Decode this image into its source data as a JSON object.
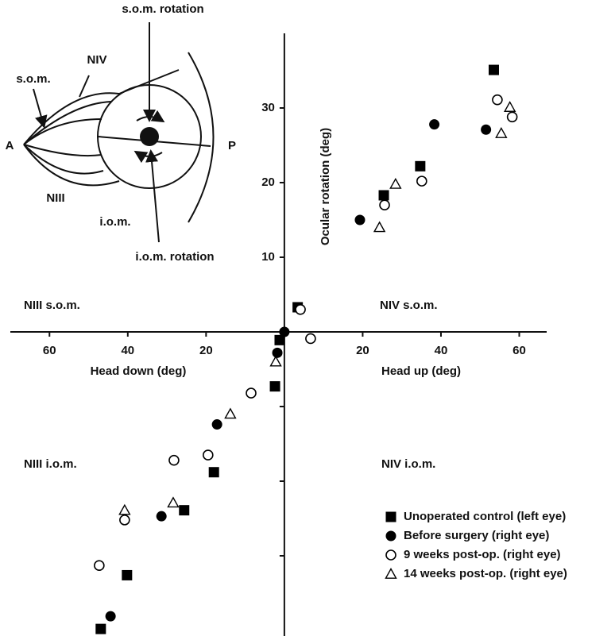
{
  "chart_data": {
    "type": "scatter",
    "xlabel_left": "Head down (deg)",
    "xlabel_right": "Head up (deg)",
    "ylabel": "Ocular rotation (deg)",
    "annotations": [
      "NIII s.o.m.",
      "NIV s.o.m.",
      "NIII i.o.m.",
      "NIV i.o.m."
    ],
    "xlim": [
      -70,
      67
    ],
    "ylim": [
      -40,
      40
    ],
    "xticks": [
      {
        "value": -60,
        "label": "60"
      },
      {
        "value": -40,
        "label": "40"
      },
      {
        "value": -20,
        "label": "20"
      },
      20,
      40,
      60
    ],
    "yticks": [
      {
        "value": -30,
        "label": null
      },
      {
        "value": -20,
        "label": null
      },
      {
        "value": -10,
        "label": null
      },
      10,
      20,
      30
    ],
    "legend": "lower right",
    "series": [
      {
        "name": "Unoperated control (left eye)",
        "color": "#000000",
        "marker": "square",
        "x": [
          53.5,
          34.7,
          25.4,
          3.4,
          -1.2,
          -2.4,
          -18,
          -25.6,
          -40.2,
          -46.9
        ],
        "values": [
          35.1,
          22.2,
          18.3,
          3.3,
          -1.1,
          -7.3,
          -18.8,
          -23.9,
          -32.6,
          -39.8
        ]
      },
      {
        "name": "Before surgery (right eye)",
        "color": "#000000",
        "marker": "circle",
        "x": [
          51.5,
          38.3,
          19.3,
          0,
          -1.8,
          -17.2,
          -31.4,
          -44.4
        ],
        "values": [
          27.1,
          27.8,
          15,
          0,
          -2.8,
          -12.4,
          -24.7,
          -38.1
        ]
      },
      {
        "name": "9 weeks post-op. (right eye)",
        "color": "#000000",
        "marker": "open-circle",
        "x": [
          54.4,
          58.2,
          35.1,
          25.6,
          4.1,
          6.7,
          -8.5,
          -19.5,
          -28.2,
          -40.8,
          -47.3
        ],
        "values": [
          31.1,
          28.8,
          20.2,
          17,
          3,
          -0.9,
          -8.2,
          -16.5,
          -17.2,
          -25.2,
          -31.3
        ]
      },
      {
        "name": "14 weeks post-op. (right eye)",
        "color": "#000000",
        "marker": "open-triangle",
        "x": [
          57.6,
          55.4,
          28.4,
          24.3,
          -2.2,
          -13.8,
          -28.4,
          -40.8
        ],
        "values": [
          30.1,
          26.6,
          19.8,
          14,
          -4,
          -11,
          -22.9,
          -23.9
        ]
      }
    ]
  },
  "inset": {
    "labels": [
      "s.o.m. rotation",
      "NIV",
      "s.o.m.",
      "A",
      "P",
      "NIII",
      "i.o.m.",
      "i.o.m. rotation"
    ]
  }
}
